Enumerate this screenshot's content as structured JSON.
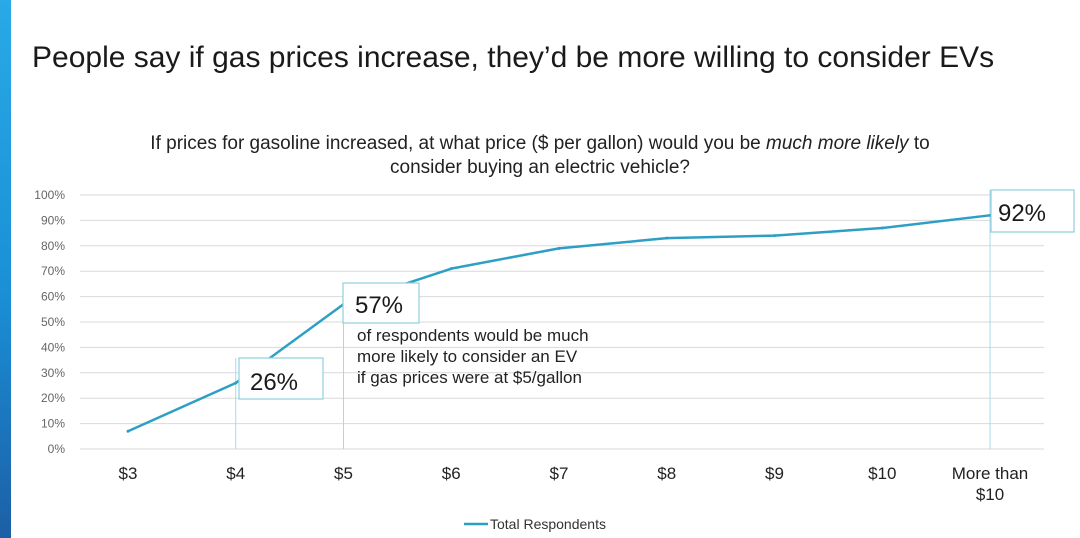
{
  "headline": "People say if gas prices increase, they’d be more willing to consider EVs",
  "chart_data": {
    "type": "line",
    "title_line1_before": "If prices for gasoline increased, at what price ($ per gallon) would you be ",
    "title_line1_emphasis": "much more likely",
    "title_line1_after": " to",
    "title_line2": "consider buying an electric vehicle?",
    "categories": [
      "$3",
      "$4",
      "$5",
      "$6",
      "$7",
      "$8",
      "$9",
      "$10",
      "More than $10"
    ],
    "category_lines": [
      [
        "$3"
      ],
      [
        "$4"
      ],
      [
        "$5"
      ],
      [
        "$6"
      ],
      [
        "$7"
      ],
      [
        "$8"
      ],
      [
        "$9"
      ],
      [
        "$10"
      ],
      [
        "More than",
        "$10"
      ]
    ],
    "series": [
      {
        "name": "Total Respondents",
        "values": [
          7,
          26,
          57,
          71,
          79,
          83,
          84,
          87,
          92
        ]
      }
    ],
    "y_ticks": [
      0,
      10,
      20,
      30,
      40,
      50,
      60,
      70,
      80,
      90,
      100
    ],
    "y_tick_labels": [
      "0%",
      "10%",
      "20%",
      "30%",
      "40%",
      "50%",
      "60%",
      "70%",
      "80%",
      "90%",
      "100%"
    ],
    "ylim": [
      0,
      100
    ],
    "grid": true,
    "legend": "bottom-center",
    "annotations": [
      {
        "category_index": 1,
        "label": "26%"
      },
      {
        "category_index": 2,
        "label": "57%",
        "description": [
          "of respondents would be much",
          "more likely to consider an EV",
          "if gas prices were at $5/gallon"
        ]
      },
      {
        "category_index": 8,
        "label": "92%"
      }
    ],
    "colors": {
      "line": "#2e9fc4",
      "grid": "#d9d9d9",
      "callout_border": "#8fcfe0",
      "guide": "#a9d9e7"
    }
  }
}
